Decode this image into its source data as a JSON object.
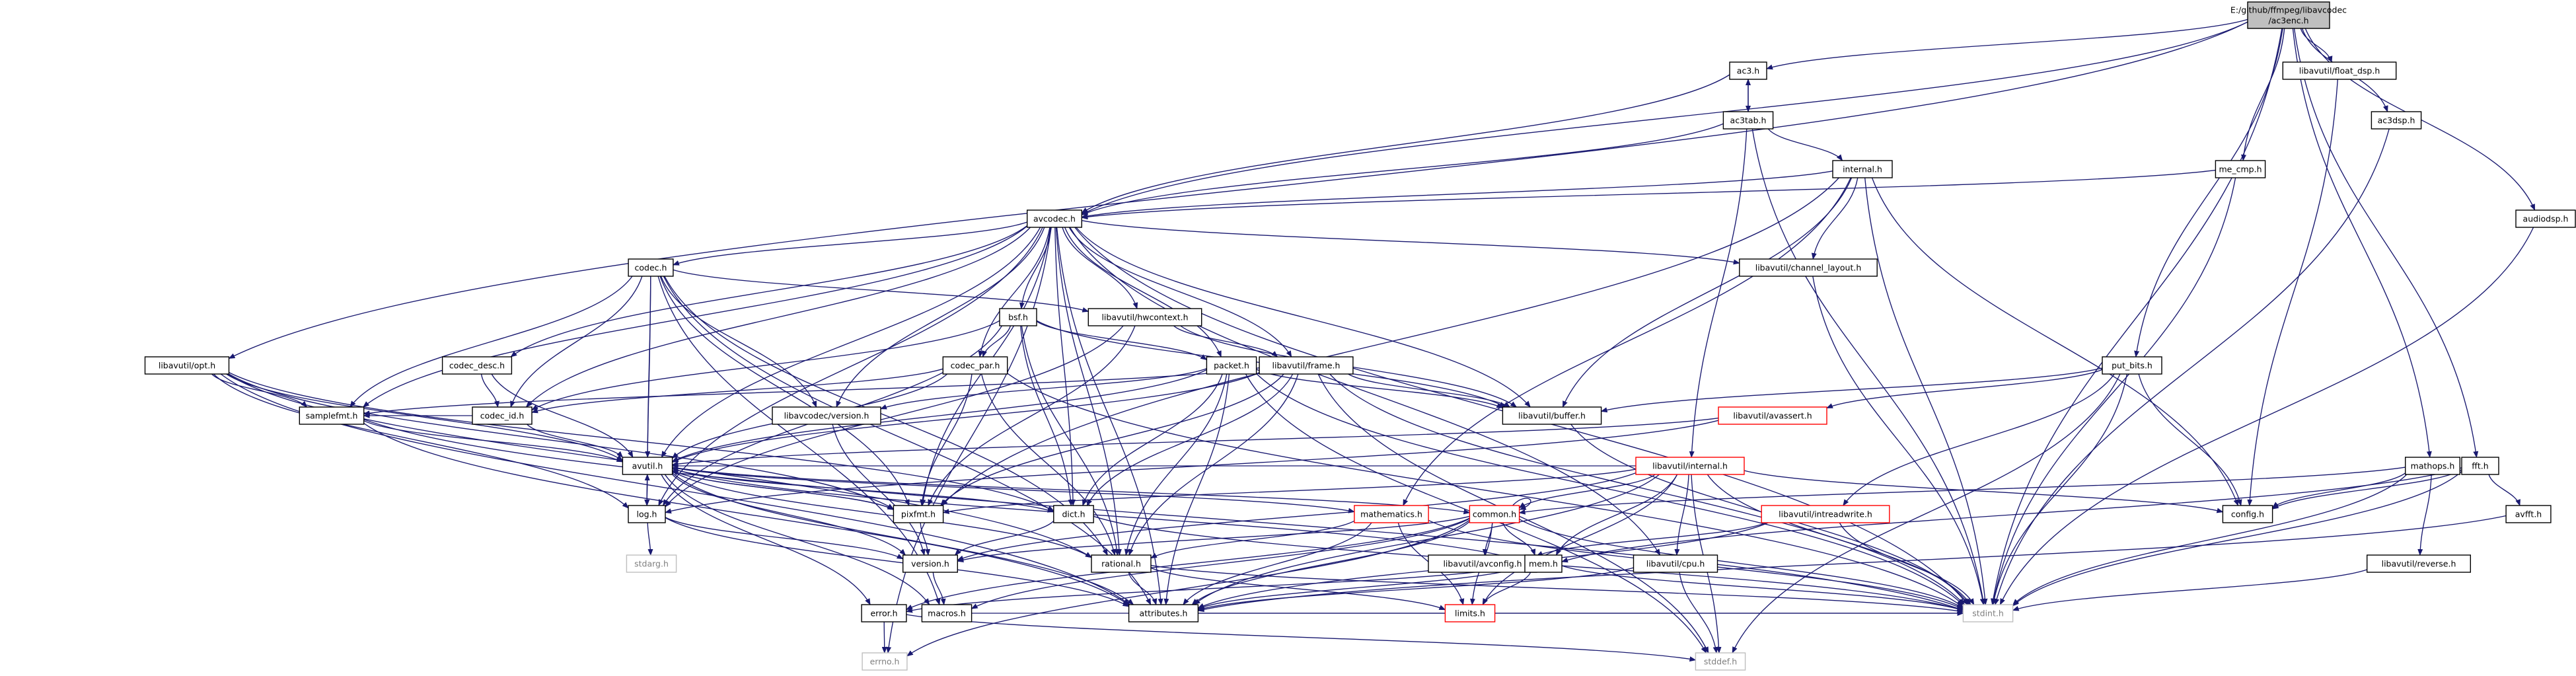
{
  "graph": {
    "title_lines": [
      "E:/github/ffmpeg/libavcodec",
      "/ac3enc.h"
    ],
    "colors": {
      "edge": "#191970",
      "box_default": "#000000",
      "box_truncated": "#ff0000",
      "box_system": "#bfbfbf",
      "root_fill": "#bfbfbf",
      "text_default": "#000000",
      "text_system": "#7f7f7f"
    },
    "nodes": [
      {
        "id": "root",
        "label": "",
        "kind": "root"
      },
      {
        "id": "ac3",
        "label": "ac3.h",
        "kind": "normal"
      },
      {
        "id": "floatdsp",
        "label": "libavutil/float_dsp.h",
        "kind": "normal"
      },
      {
        "id": "ac3dsp",
        "label": "ac3dsp.h",
        "kind": "normal"
      },
      {
        "id": "ac3tab",
        "label": "ac3tab.h",
        "kind": "normal"
      },
      {
        "id": "mecmp",
        "label": "me_cmp.h",
        "kind": "normal"
      },
      {
        "id": "internal",
        "label": "internal.h",
        "kind": "normal"
      },
      {
        "id": "avcodec",
        "label": "avcodec.h",
        "kind": "normal"
      },
      {
        "id": "audiodsp",
        "label": "audiodsp.h",
        "kind": "normal"
      },
      {
        "id": "codec",
        "label": "codec.h",
        "kind": "normal"
      },
      {
        "id": "chlayout",
        "label": "libavutil/channel_layout.h",
        "kind": "normal"
      },
      {
        "id": "bsf",
        "label": "bsf.h",
        "kind": "normal"
      },
      {
        "id": "hwcontext",
        "label": "libavutil/hwcontext.h",
        "kind": "normal"
      },
      {
        "id": "opt",
        "label": "libavutil/opt.h",
        "kind": "normal"
      },
      {
        "id": "codecdesc",
        "label": "codec_desc.h",
        "kind": "normal"
      },
      {
        "id": "codecpar",
        "label": "codec_par.h",
        "kind": "normal"
      },
      {
        "id": "packet",
        "label": "packet.h",
        "kind": "normal"
      },
      {
        "id": "frame",
        "label": "libavutil/frame.h",
        "kind": "normal"
      },
      {
        "id": "putbits",
        "label": "put_bits.h",
        "kind": "normal"
      },
      {
        "id": "samplefmt",
        "label": "samplefmt.h",
        "kind": "normal"
      },
      {
        "id": "codecid",
        "label": "codec_id.h",
        "kind": "normal"
      },
      {
        "id": "lavcversion",
        "label": "libavcodec/version.h",
        "kind": "normal"
      },
      {
        "id": "buffer",
        "label": "libavutil/buffer.h",
        "kind": "normal"
      },
      {
        "id": "avassert",
        "label": "libavutil/avassert.h",
        "kind": "truncated"
      },
      {
        "id": "mathops",
        "label": "mathops.h",
        "kind": "normal"
      },
      {
        "id": "fft",
        "label": "fft.h",
        "kind": "normal"
      },
      {
        "id": "avutil",
        "label": "avutil.h",
        "kind": "normal"
      },
      {
        "id": "lavuinternal",
        "label": "libavutil/internal.h",
        "kind": "truncated"
      },
      {
        "id": "log",
        "label": "log.h",
        "kind": "normal"
      },
      {
        "id": "pixfmt",
        "label": "pixfmt.h",
        "kind": "normal"
      },
      {
        "id": "dict",
        "label": "dict.h",
        "kind": "normal"
      },
      {
        "id": "mathematics",
        "label": "mathematics.h",
        "kind": "truncated"
      },
      {
        "id": "common",
        "label": "common.h",
        "kind": "truncated"
      },
      {
        "id": "intreadwrite",
        "label": "libavutil/intreadwrite.h",
        "kind": "truncated"
      },
      {
        "id": "config",
        "label": "config.h",
        "kind": "normal"
      },
      {
        "id": "avfft",
        "label": "avfft.h",
        "kind": "normal"
      },
      {
        "id": "stdarg",
        "label": "stdarg.h",
        "kind": "system"
      },
      {
        "id": "version",
        "label": "version.h",
        "kind": "normal"
      },
      {
        "id": "rational",
        "label": "rational.h",
        "kind": "normal"
      },
      {
        "id": "avconfig",
        "label": "libavutil/avconfig.h",
        "kind": "normal"
      },
      {
        "id": "mem",
        "label": "mem.h",
        "kind": "normal"
      },
      {
        "id": "cpu",
        "label": "libavutil/cpu.h",
        "kind": "normal"
      },
      {
        "id": "reverse",
        "label": "libavutil/reverse.h",
        "kind": "normal"
      },
      {
        "id": "error",
        "label": "error.h",
        "kind": "normal"
      },
      {
        "id": "macros",
        "label": "macros.h",
        "kind": "normal"
      },
      {
        "id": "attributes",
        "label": "attributes.h",
        "kind": "normal"
      },
      {
        "id": "limits",
        "label": "limits.h",
        "kind": "truncated"
      },
      {
        "id": "stdint",
        "label": "stdint.h",
        "kind": "system"
      },
      {
        "id": "errno",
        "label": "errno.h",
        "kind": "system"
      },
      {
        "id": "stddef",
        "label": "stddef.h",
        "kind": "system"
      }
    ],
    "edges": [
      [
        "root",
        "ac3"
      ],
      [
        "root",
        "floatdsp"
      ],
      [
        "root",
        "ac3dsp"
      ],
      [
        "root",
        "mecmp"
      ],
      [
        "root",
        "avcodec"
      ],
      [
        "root",
        "audiodsp"
      ],
      [
        "root",
        "opt"
      ],
      [
        "root",
        "putbits"
      ],
      [
        "root",
        "mathops"
      ],
      [
        "root",
        "fft"
      ],
      [
        "root",
        "stdint"
      ],
      [
        "ac3",
        "ac3tab"
      ],
      [
        "ac3",
        "avcodec"
      ],
      [
        "ac3tab",
        "ac3"
      ],
      [
        "ac3tab",
        "internal"
      ],
      [
        "ac3tab",
        "avcodec"
      ],
      [
        "ac3tab",
        "stdint"
      ],
      [
        "ac3tab",
        "lavuinternal"
      ],
      [
        "floatdsp",
        "config"
      ],
      [
        "ac3dsp",
        "stdint"
      ],
      [
        "mecmp",
        "avcodec"
      ],
      [
        "mecmp",
        "stdint"
      ],
      [
        "audiodsp",
        "stdint"
      ],
      [
        "internal",
        "avcodec"
      ],
      [
        "internal",
        "chlayout"
      ],
      [
        "internal",
        "buffer"
      ],
      [
        "internal",
        "stdint"
      ],
      [
        "internal",
        "config"
      ],
      [
        "internal",
        "pixfmt"
      ],
      [
        "internal",
        "mathematics"
      ],
      [
        "avcodec",
        "codec"
      ],
      [
        "avcodec",
        "chlayout"
      ],
      [
        "avcodec",
        "bsf"
      ],
      [
        "avcodec",
        "hwcontext"
      ],
      [
        "avcodec",
        "codecdesc"
      ],
      [
        "avcodec",
        "codecpar"
      ],
      [
        "avcodec",
        "packet"
      ],
      [
        "avcodec",
        "frame"
      ],
      [
        "avcodec",
        "samplefmt"
      ],
      [
        "avcodec",
        "codecid"
      ],
      [
        "avcodec",
        "lavcversion"
      ],
      [
        "avcodec",
        "buffer"
      ],
      [
        "avcodec",
        "avutil"
      ],
      [
        "avcodec",
        "log"
      ],
      [
        "avcodec",
        "pixfmt"
      ],
      [
        "avcodec",
        "dict"
      ],
      [
        "avcodec",
        "rational"
      ],
      [
        "avcodec",
        "cpu"
      ],
      [
        "avcodec",
        "attributes"
      ],
      [
        "avcodec",
        "errno"
      ],
      [
        "avcodec",
        "stdint"
      ],
      [
        "codec",
        "hwcontext"
      ],
      [
        "codec",
        "samplefmt"
      ],
      [
        "codec",
        "codecid"
      ],
      [
        "codec",
        "lavcversion"
      ],
      [
        "codec",
        "avutil"
      ],
      [
        "codec",
        "log"
      ],
      [
        "codec",
        "pixfmt"
      ],
      [
        "codec",
        "rational"
      ],
      [
        "codec",
        "macros"
      ],
      [
        "codec",
        "attributes"
      ],
      [
        "chlayout",
        "stdint"
      ],
      [
        "bsf",
        "codecid"
      ],
      [
        "bsf",
        "codecpar"
      ],
      [
        "bsf",
        "packet"
      ],
      [
        "bsf",
        "dict"
      ],
      [
        "bsf",
        "log"
      ],
      [
        "bsf",
        "rational"
      ],
      [
        "bsf",
        "buffer"
      ],
      [
        "hwcontext",
        "buffer"
      ],
      [
        "hwcontext",
        "frame"
      ],
      [
        "hwcontext",
        "pixfmt"
      ],
      [
        "hwcontext",
        "log"
      ],
      [
        "opt",
        "samplefmt"
      ],
      [
        "opt",
        "avutil"
      ],
      [
        "opt",
        "log"
      ],
      [
        "opt",
        "pixfmt"
      ],
      [
        "opt",
        "dict"
      ],
      [
        "opt",
        "rational"
      ],
      [
        "opt",
        "attributes"
      ],
      [
        "codecdesc",
        "codecid"
      ],
      [
        "codecdesc",
        "avutil"
      ],
      [
        "codecpar",
        "codecid"
      ],
      [
        "codecpar",
        "pixfmt"
      ],
      [
        "codecpar",
        "rational"
      ],
      [
        "codecpar",
        "avutil"
      ],
      [
        "codecpar",
        "stdint"
      ],
      [
        "packet",
        "buffer"
      ],
      [
        "packet",
        "dict"
      ],
      [
        "packet",
        "rational"
      ],
      [
        "packet",
        "attributes"
      ],
      [
        "packet",
        "lavcversion"
      ],
      [
        "packet",
        "stdint"
      ],
      [
        "packet",
        "stddef"
      ],
      [
        "packet",
        "avutil"
      ],
      [
        "frame",
        "buffer"
      ],
      [
        "frame",
        "avutil"
      ],
      [
        "frame",
        "dict"
      ],
      [
        "frame",
        "pixfmt"
      ],
      [
        "frame",
        "rational"
      ],
      [
        "frame",
        "samplefmt"
      ],
      [
        "frame",
        "stdint"
      ],
      [
        "frame",
        "stddef"
      ],
      [
        "putbits",
        "avassert"
      ],
      [
        "putbits",
        "intreadwrite"
      ],
      [
        "putbits",
        "config"
      ],
      [
        "putbits",
        "buffer"
      ],
      [
        "putbits",
        "stdint"
      ],
      [
        "putbits",
        "stddef"
      ],
      [
        "samplefmt",
        "avutil"
      ],
      [
        "samplefmt",
        "attributes"
      ],
      [
        "samplefmt",
        "stdint"
      ],
      [
        "codecid",
        "avutil"
      ],
      [
        "codecid",
        "samplefmt"
      ],
      [
        "lavcversion",
        "version"
      ],
      [
        "buffer",
        "stdint"
      ],
      [
        "avassert",
        "avutil"
      ],
      [
        "avassert",
        "log"
      ],
      [
        "mathops",
        "config"
      ],
      [
        "mathops",
        "common"
      ],
      [
        "mathops",
        "stdint"
      ],
      [
        "mathops",
        "reverse"
      ],
      [
        "fft",
        "config"
      ],
      [
        "fft",
        "avfft"
      ],
      [
        "fft",
        "mem"
      ],
      [
        "fft",
        "stdint"
      ],
      [
        "avutil",
        "common"
      ],
      [
        "avutil",
        "error"
      ],
      [
        "avutil",
        "log"
      ],
      [
        "avutil",
        "macros"
      ],
      [
        "avutil",
        "version"
      ],
      [
        "avutil",
        "pixfmt"
      ],
      [
        "avutil",
        "rational"
      ],
      [
        "avutil",
        "mathematics"
      ],
      [
        "avutil",
        "attributes"
      ],
      [
        "avutil",
        "dict"
      ],
      [
        "lavuinternal",
        "config"
      ],
      [
        "lavuinternal",
        "attributes"
      ],
      [
        "lavuinternal",
        "common"
      ],
      [
        "lavuinternal",
        "version"
      ],
      [
        "lavuinternal",
        "cpu"
      ],
      [
        "lavuinternal",
        "mem"
      ],
      [
        "lavuinternal",
        "limits"
      ],
      [
        "lavuinternal",
        "stdint"
      ],
      [
        "lavuinternal",
        "stddef"
      ],
      [
        "lavuinternal",
        "pixfmt"
      ],
      [
        "lavuinternal",
        "avutil"
      ],
      [
        "log",
        "avutil"
      ],
      [
        "log",
        "stdarg"
      ],
      [
        "log",
        "version"
      ],
      [
        "log",
        "attributes"
      ],
      [
        "pixfmt",
        "avutil"
      ],
      [
        "pixfmt",
        "version"
      ],
      [
        "dict",
        "stdint"
      ],
      [
        "dict",
        "version"
      ],
      [
        "mathematics",
        "attributes"
      ],
      [
        "mathematics",
        "rational"
      ],
      [
        "mathematics",
        "limits"
      ],
      [
        "mathematics",
        "stdint"
      ],
      [
        "common",
        "attributes"
      ],
      [
        "common",
        "macros"
      ],
      [
        "common",
        "version"
      ],
      [
        "common",
        "avconfig"
      ],
      [
        "common",
        "mem"
      ],
      [
        "common",
        "error"
      ],
      [
        "common",
        "limits"
      ],
      [
        "common",
        "stdint"
      ],
      [
        "common",
        "errno"
      ],
      [
        "common",
        "common"
      ],
      [
        "intreadwrite",
        "avconfig"
      ],
      [
        "intreadwrite",
        "attributes"
      ],
      [
        "intreadwrite",
        "stdint"
      ],
      [
        "version",
        "macros"
      ],
      [
        "rational",
        "attributes"
      ],
      [
        "rational",
        "stdint"
      ],
      [
        "rational",
        "limits"
      ],
      [
        "mem",
        "attributes"
      ],
      [
        "mem",
        "error"
      ],
      [
        "mem",
        "avutil"
      ],
      [
        "mem",
        "limits"
      ],
      [
        "mem",
        "stdint"
      ],
      [
        "cpu",
        "attributes"
      ],
      [
        "cpu",
        "stddef"
      ],
      [
        "reverse",
        "stdint"
      ],
      [
        "error",
        "errno"
      ],
      [
        "error",
        "stddef"
      ],
      [
        "macros",
        "stdint"
      ],
      [
        "attributes",
        "stdint"
      ],
      [
        "avfft",
        "attributes"
      ]
    ]
  }
}
